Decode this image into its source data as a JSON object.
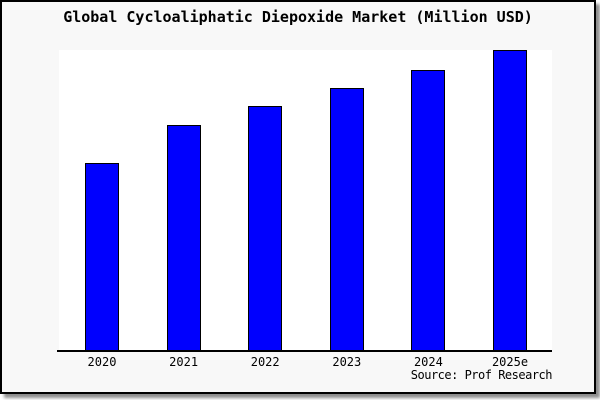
{
  "colors": {
    "bar_fill": "#0000fe",
    "bar_border": "#000000",
    "card_background": "#f8f8f8",
    "plot_background": "#ffffff",
    "frame_border": "#000000"
  },
  "chart_data": {
    "type": "bar",
    "title": "Global Cycloaliphatic Diepoxide Market (Million USD)",
    "xlabel": "",
    "ylabel": "",
    "categories": [
      "2020",
      "2021",
      "2022",
      "2023",
      "2024",
      "2025e"
    ],
    "values": [
      62.6,
      75.0,
      81.3,
      87.4,
      93.4,
      100
    ],
    "values_note": "relative bar heights as % of tallest bar; no y-axis scale is shown in the image",
    "ylim": [
      0,
      100
    ],
    "grid": false,
    "y_axis_visible": false,
    "legend": "none",
    "source": "Source: Prof Research"
  }
}
